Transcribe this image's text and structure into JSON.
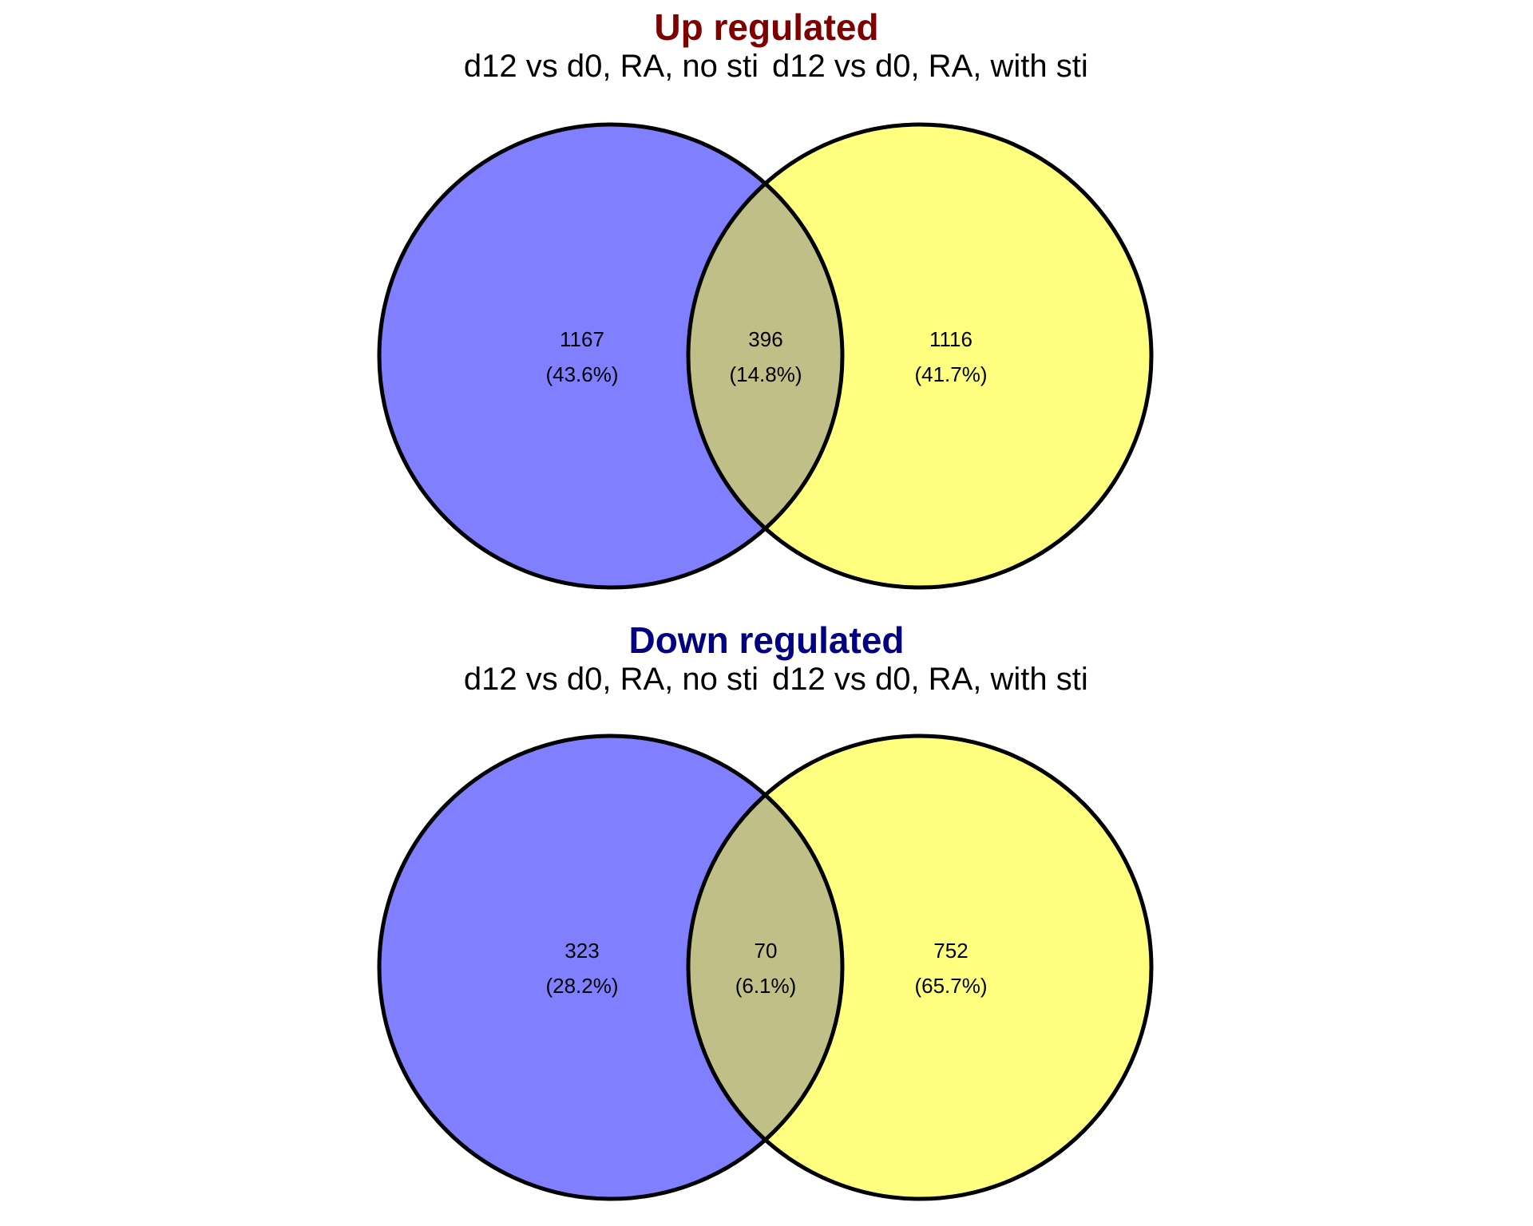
{
  "chart_data": [
    {
      "type": "venn",
      "title": "Up regulated",
      "title_color": "#7f0000",
      "set_labels": [
        "d12 vs d0, RA, no sti",
        "d12 vs d0, RA, with sti"
      ],
      "set_colors": [
        "#8080ff",
        "#ffff80"
      ],
      "overlap_color": "#bfbf87",
      "regions": [
        {
          "name": "only-left",
          "count": "1167",
          "percent": "(43.6%)"
        },
        {
          "name": "overlap",
          "count": "396",
          "percent": "(14.8%)"
        },
        {
          "name": "only-right",
          "count": "1116",
          "percent": "(41.7%)"
        }
      ]
    },
    {
      "type": "venn",
      "title": "Down regulated",
      "title_color": "#000080",
      "set_labels": [
        "d12 vs d0, RA, no sti",
        "d12 vs d0, RA, with sti"
      ],
      "set_colors": [
        "#8080ff",
        "#ffff80"
      ],
      "overlap_color": "#bfbf87",
      "regions": [
        {
          "name": "only-left",
          "count": "323",
          "percent": "(28.2%)"
        },
        {
          "name": "overlap",
          "count": "70",
          "percent": "(6.1%)"
        },
        {
          "name": "only-right",
          "count": "752",
          "percent": "(65.7%)"
        }
      ]
    }
  ]
}
